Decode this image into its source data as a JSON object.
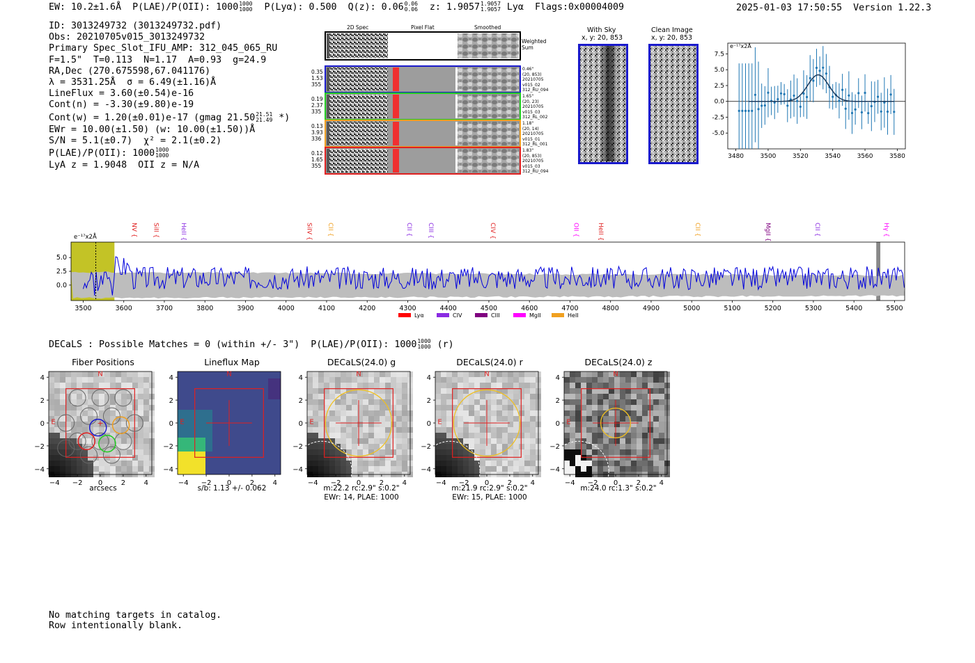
{
  "header": {
    "ew": "EW: 10.2±1.6Å",
    "plae_label": "P(LAE)/P(OII): 1000",
    "plae_hi": "1000",
    "plae_lo": "1000",
    "plya": "P(Lyα): 0.500",
    "qz_label": "Q(z): 0.06",
    "qz_hi": "0.06",
    "qz_lo": "0.06",
    "z_label": "z: 1.9057",
    "z_hi": "1.9057",
    "z_lo": "1.9057",
    "z_line": "Lyα",
    "flags": "Flags:0x00004009",
    "timestamp": "2025-01-03 17:50:55",
    "version": "Version 1.22.3"
  },
  "info": {
    "id": "ID: 3013249732 (3013249732.pdf)",
    "obs": "Obs: 20210705v015_3013249732",
    "primary": "Primary Spec_Slot_IFU_AMP: 312_045_065_RU",
    "fta": "F=1.5\"  T=0.113  N=1.17  A=0.93  g=24.9",
    "radec": "RA,Dec (270.675598,67.041176)",
    "lambda": "λ = 3531.25Å  σ = 6.49(±1.16)Å",
    "lineflux": "LineFlux = 3.60(±0.54)e-16",
    "contn": "Cont(n) = -3.30(±9.80)e-19",
    "contw": "Cont(w) = 1.20(±0.01)e-17 (gmag 21.50",
    "contw_hi": "21.51",
    "contw_lo": "21.49",
    "contw_end": " *)",
    "ewr": "EWr = 10.00(±1.50) (w: 10.00(±1.50))Å",
    "sn": "S/N = 5.1(±0.7)  χ² = 2.1(±0.2)",
    "plae": "P(LAE)/P(OII): 1000",
    "plae_hi": "1000",
    "plae_lo": "1000",
    "lyaz": "LyA z = 1.9048  OII z = N/A"
  },
  "cutouts": {
    "col_2d": "2D Spec",
    "col_flat": "Pixel Flat",
    "col_smooth": "Smoothed",
    "weighted": "Weighted Sum",
    "rows": [
      {
        "l1": "0.35",
        "l2": "1.53",
        "l3": "355",
        "r1": "0.46\"",
        "r2": "(20, 853)",
        "r3": "20210705",
        "r4": "v015_02",
        "r5": "312_RU_094",
        "color": "#1a1acc"
      },
      {
        "l1": "0.19",
        "l2": "2.37",
        "l3": "335",
        "r1": "1.65\"",
        "r2": "(20, 23)",
        "r3": "20210705",
        "r4": "v015_03",
        "r5": "312_RL_002",
        "color": "#22cc22"
      },
      {
        "l1": "0.13",
        "l2": "3.93",
        "l3": "336",
        "r1": "1.18\"",
        "r2": "(20, 14)",
        "r3": "20210705",
        "r4": "v015_01",
        "r5": "312_RL_001",
        "color": "#f0a020"
      },
      {
        "l1": "0.12",
        "l2": "1.65",
        "l3": "355",
        "r1": "1.83\"",
        "r2": "(20, 853)",
        "r3": "20210705",
        "r4": "v015_03",
        "r5": "312_RU_094",
        "color": "#e02020"
      }
    ],
    "with_sky_title": "With Sky",
    "with_sky_sub": "x, y: 20, 853",
    "clean_title": "Clean Image",
    "clean_sub": "x, y: 20, 853"
  },
  "fit_plot": {
    "unit": "e⁻¹⁷x2Å",
    "yticks": [
      "7.5",
      "5.0",
      "2.5",
      "0.0",
      "-2.5",
      "-5.0"
    ],
    "xticks": [
      "3480",
      "3500",
      "3520",
      "3540",
      "3560",
      "3580"
    ]
  },
  "spectrum": {
    "unit": "e⁻¹⁷x2Å",
    "yticks": [
      "5.0",
      "2.5",
      "0.0"
    ],
    "xticks": [
      "3500",
      "3600",
      "3700",
      "3800",
      "3900",
      "4000",
      "4100",
      "4200",
      "4300",
      "4400",
      "4500",
      "4600",
      "4700",
      "4800",
      "4900",
      "5000",
      "5100",
      "5200",
      "5300",
      "5400",
      "5500"
    ],
    "lines": [
      {
        "name": "NV",
        "wl": 3616,
        "color": "#e02020"
      },
      {
        "name": "SiII",
        "wl": 3670,
        "color": "#e02020"
      },
      {
        "name": "HeII",
        "wl": 3738,
        "color": "#8a2be2"
      },
      {
        "name": "SiIV",
        "wl": 4048,
        "color": "#e02020"
      },
      {
        "name": "CII",
        "wl": 4100,
        "color": "#f0a020"
      },
      {
        "name": "CII",
        "wl": 4294,
        "color": "#8a2be2"
      },
      {
        "name": "CIII",
        "wl": 4347,
        "color": "#8a2be2"
      },
      {
        "name": "CIV",
        "wl": 4500,
        "color": "#e02020"
      },
      {
        "name": "OII",
        "wl": 4705,
        "color": "#ff00ff"
      },
      {
        "name": "HeII",
        "wl": 4766,
        "color": "#e02020"
      },
      {
        "name": "CII",
        "wl": 5005,
        "color": "#f0a020"
      },
      {
        "name": "MgII",
        "wl": 5178,
        "color": "#800080"
      },
      {
        "name": "CII",
        "wl": 5300,
        "color": "#8a2be2"
      },
      {
        "name": "Hγ",
        "wl": 5470,
        "color": "#ff00ff"
      }
    ],
    "legend": [
      {
        "label": "Lyα",
        "color": "#ff0000"
      },
      {
        "label": "CIV",
        "color": "#8a2be2"
      },
      {
        "label": "CIII",
        "color": "#800080"
      },
      {
        "label": "MgII",
        "color": "#ff00ff"
      },
      {
        "label": "HeII",
        "color": "#f0a020"
      }
    ]
  },
  "decals": {
    "summary": "DECaLS : Possible Matches = 0 (within +/- 3\")  P(LAE)/P(OII): 1000",
    "summary_hi": "1000",
    "summary_lo": "1000",
    "summary_end": "(r)",
    "ticks_y": [
      "4",
      "2",
      "0",
      "−2",
      "−4"
    ],
    "ticks_x": [
      "−4",
      "−2",
      "0",
      "2",
      "4"
    ],
    "panels": [
      {
        "title": "Fiber Positions",
        "cap1": "arcsecs",
        "cap2": ""
      },
      {
        "title": "Lineflux Map",
        "cap1": "s/b: 1.13 +/- 0.062",
        "cap2": ""
      },
      {
        "title": "DECaLS(24.0) g",
        "cap1": "m:22.2 rc:2.9\"  s:0.2\"",
        "cap2": "EWr: 14, PLAE: 1000"
      },
      {
        "title": "DECaLS(24.0) r",
        "cap1": "m:21.9 rc:2.9\"  s:0.2\"",
        "cap2": "EWr: 15, PLAE: 1000"
      },
      {
        "title": "DECaLS(24.0) z",
        "cap1": "m:24.0 rc:1.3\"  s:0.2\"",
        "cap2": ""
      }
    ],
    "north": "N",
    "east": "E"
  },
  "footer": {
    "line1": "No matching targets in catalog.",
    "line2": "Row intentionally blank."
  }
}
